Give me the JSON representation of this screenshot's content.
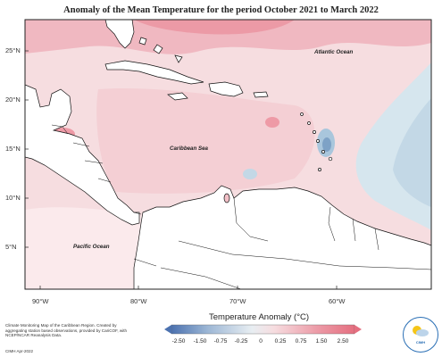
{
  "map": {
    "title": "Anomaly of the Mean Temperature for the period October 2021 to March 2022",
    "lat_labels": [
      "25°N",
      "20°N",
      "15°N",
      "10°N",
      "5°N"
    ],
    "lon_labels": [
      "90°W",
      "80°W",
      "70°W",
      "60°W"
    ],
    "place_labels": {
      "atlantic": "Atlantic Ocean",
      "caribbean": "Caribbean Sea",
      "pacific": "Pacific Ocean"
    },
    "colors": {
      "ocean_anomaly": "#f6dde0",
      "warm_mid": "#f4c1c8",
      "warm_strong": "#ee9aa6",
      "cool_light": "#d6e6ee",
      "cool_mid": "#a9c6dc",
      "cool_strong": "#5c88b6",
      "land": "#ffffff",
      "coast": "#111111"
    }
  },
  "legend": {
    "title": "Temperature Anomaly (°C)",
    "ticks": [
      "-2.50",
      "-1.50",
      "-0.75",
      "-0.25",
      "0",
      "0.25",
      "0.75",
      "1.50",
      "2.50"
    ],
    "colors": [
      "#4c72b0",
      "#7a9cc9",
      "#9db7d5",
      "#c4d7e6",
      "#e8eef2",
      "#f6dde0",
      "#f2c0c7",
      "#ec9aa6",
      "#e56f80"
    ]
  },
  "footer": {
    "note": "Climate Monitoring Map of the Caribbean Region. Created by aggregating station based observations, provided by CariCOF, with NCEP/NCAR Reanalysis Data.",
    "credit": "CIMH Apr-2022",
    "logo_text": "CIMH"
  }
}
